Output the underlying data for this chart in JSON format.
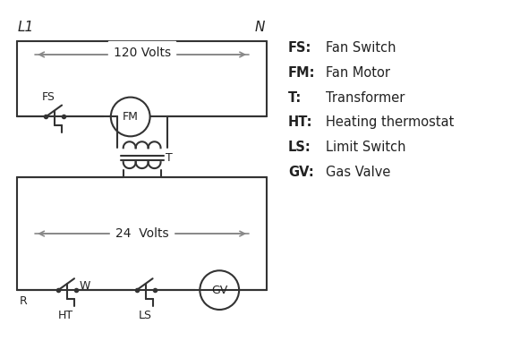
{
  "background": "#ffffff",
  "line_color": "#333333",
  "gray_color": "#888888",
  "text_color": "#222222",
  "volts_120": "120 Volts",
  "volts_24": "24  Volts",
  "L1": "L1",
  "N": "N",
  "legend_entries": [
    [
      "FS:",
      "Fan Switch"
    ],
    [
      "FM:",
      "Fan Motor"
    ],
    [
      "T:",
      "Transformer"
    ],
    [
      "HT:",
      "Heating thermostat"
    ],
    [
      "LS:",
      "Limit Switch"
    ],
    [
      "GV:",
      "Gas Valve"
    ]
  ]
}
